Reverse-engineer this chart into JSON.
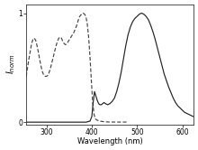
{
  "excitation": {
    "x": [
      255,
      258,
      261,
      264,
      267,
      270,
      273,
      276,
      279,
      282,
      285,
      288,
      291,
      294,
      297,
      300,
      303,
      306,
      309,
      312,
      315,
      318,
      321,
      324,
      327,
      330,
      333,
      336,
      339,
      342,
      345,
      348,
      351,
      354,
      357,
      360,
      363,
      366,
      369,
      372,
      375,
      378,
      381,
      384,
      387,
      390,
      393,
      396,
      399,
      402,
      405,
      408,
      411,
      414,
      417,
      420,
      425,
      430,
      435,
      440,
      445,
      450,
      460,
      470,
      480
    ],
    "y": [
      0.42,
      0.5,
      0.58,
      0.65,
      0.72,
      0.76,
      0.77,
      0.75,
      0.7,
      0.64,
      0.57,
      0.51,
      0.46,
      0.43,
      0.42,
      0.42,
      0.43,
      0.46,
      0.5,
      0.55,
      0.6,
      0.65,
      0.7,
      0.74,
      0.77,
      0.78,
      0.77,
      0.74,
      0.72,
      0.71,
      0.72,
      0.74,
      0.76,
      0.78,
      0.8,
      0.82,
      0.85,
      0.88,
      0.92,
      0.96,
      0.98,
      0.99,
      1.0,
      0.99,
      0.97,
      0.9,
      0.78,
      0.6,
      0.38,
      0.18,
      0.07,
      0.03,
      0.02,
      0.015,
      0.01,
      0.008,
      0.005,
      0.003,
      0.002,
      0.001,
      0.001,
      0.001,
      0.001,
      0.001,
      0.001
    ]
  },
  "emission": {
    "x": [
      255,
      270,
      285,
      300,
      315,
      330,
      345,
      360,
      375,
      388,
      392,
      396,
      400,
      403,
      406,
      409,
      412,
      415,
      418,
      421,
      424,
      427,
      430,
      435,
      440,
      445,
      450,
      455,
      460,
      465,
      470,
      475,
      480,
      485,
      490,
      495,
      500,
      505,
      510,
      515,
      520,
      525,
      530,
      535,
      540,
      545,
      550,
      555,
      560,
      565,
      570,
      575,
      580,
      585,
      590,
      595,
      600,
      605,
      610,
      615,
      620,
      625
    ],
    "y": [
      0.0,
      0.0,
      0.0,
      0.0,
      0.0,
      0.0,
      0.0,
      0.0,
      0.0,
      0.0,
      0.005,
      0.01,
      0.05,
      0.18,
      0.28,
      0.24,
      0.2,
      0.17,
      0.16,
      0.16,
      0.17,
      0.18,
      0.17,
      0.16,
      0.17,
      0.19,
      0.22,
      0.28,
      0.36,
      0.46,
      0.58,
      0.7,
      0.8,
      0.87,
      0.92,
      0.95,
      0.97,
      0.99,
      1.0,
      0.99,
      0.97,
      0.94,
      0.89,
      0.83,
      0.76,
      0.68,
      0.6,
      0.52,
      0.44,
      0.38,
      0.32,
      0.27,
      0.22,
      0.18,
      0.15,
      0.13,
      0.11,
      0.09,
      0.08,
      0.07,
      0.06,
      0.05
    ]
  },
  "xlim": [
    255,
    625
  ],
  "ylim": [
    -0.02,
    1.08
  ],
  "xticks": [
    300,
    400,
    500,
    600
  ],
  "yticks": [
    0,
    1
  ],
  "ytick_labels": [
    "0",
    "1"
  ],
  "xlabel": "Wavelength (nm)",
  "ylabel": "$I_{norm}$",
  "background": "#ffffff",
  "excitation_color": "#444444",
  "emission_color": "#222222",
  "linewidth": 0.85
}
